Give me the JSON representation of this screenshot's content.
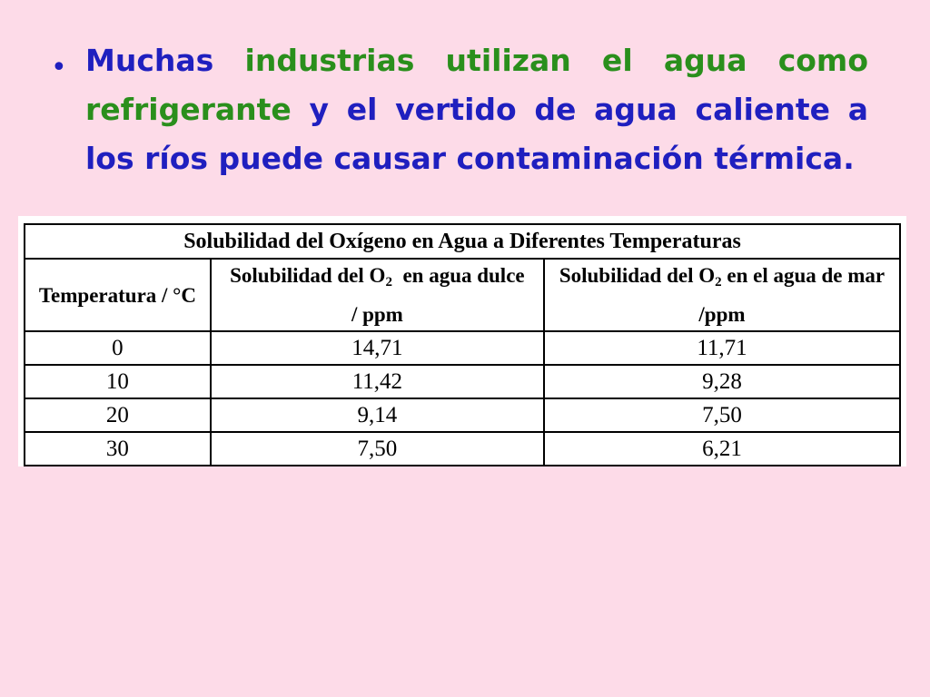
{
  "bullet": {
    "symbol": "•",
    "segments": [
      {
        "text": "Muchas ",
        "color": "blue"
      },
      {
        "text": "industrias utilizan el agua como refrigerante",
        "color": "green"
      },
      {
        "text": " y el vertido de agua caliente a los ríos puede causar  contaminación térmica.",
        "color": "blue"
      }
    ]
  },
  "table": {
    "title": "Solubilidad del Oxígeno en Agua a Diferentes Temperaturas",
    "headers": {
      "col1": "Temperatura / °C",
      "col2_pre": "Solubilidad del O",
      "col2_sub": "2",
      "col2_post": "  en agua dulce / ppm",
      "col3_pre": "Solubilidad del O",
      "col3_sub": "2",
      "col3_post": " en el agua de mar /ppm"
    },
    "rows": [
      {
        "temp": "0",
        "fresh": "14,71",
        "sea": "11,71"
      },
      {
        "temp": "10",
        "fresh": "11,42",
        "sea": "9,28"
      },
      {
        "temp": "20",
        "fresh": "9,14",
        "sea": "7,50"
      },
      {
        "temp": "30",
        "fresh": "7,50",
        "sea": "6,21"
      }
    ]
  },
  "colors": {
    "background": "#fddbe8",
    "blue_text": "#1f1fbf",
    "green_text": "#2a8f1c"
  }
}
